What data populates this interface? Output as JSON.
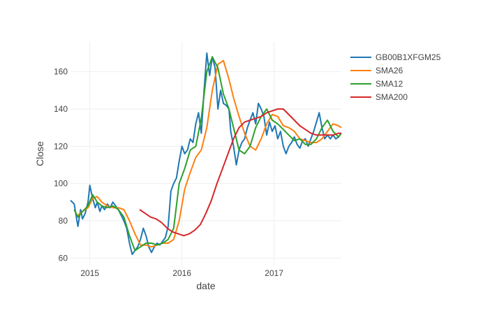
{
  "chart_data": {
    "type": "line",
    "xlabel": "date",
    "ylabel": "Close",
    "xlim": [
      2014.79,
      2017.73
    ],
    "ylim": [
      56,
      176
    ],
    "x_ticks": [
      2015,
      2016,
      2017
    ],
    "x_tick_labels": [
      "2015",
      "2016",
      "2017"
    ],
    "y_ticks": [
      60,
      80,
      100,
      120,
      140,
      160
    ],
    "grid": true,
    "legend_position": "top-right",
    "series": [
      {
        "name": "GB00B1XFGM25",
        "color": "#1f77b4",
        "x": [
          2014.79,
          2014.83,
          2014.87,
          2014.9,
          2014.92,
          2014.95,
          2014.98,
          2015.0,
          2015.03,
          2015.06,
          2015.08,
          2015.11,
          2015.13,
          2015.16,
          2015.19,
          2015.22,
          2015.25,
          2015.28,
          2015.31,
          2015.34,
          2015.37,
          2015.4,
          2015.43,
          2015.46,
          2015.49,
          2015.52,
          2015.55,
          2015.58,
          2015.61,
          2015.64,
          2015.67,
          2015.7,
          2015.73,
          2015.76,
          2015.79,
          2015.82,
          2015.85,
          2015.88,
          2015.91,
          2015.94,
          2015.97,
          2016.0,
          2016.03,
          2016.06,
          2016.09,
          2016.12,
          2016.15,
          2016.18,
          2016.21,
          2016.24,
          2016.27,
          2016.3,
          2016.33,
          2016.36,
          2016.39,
          2016.42,
          2016.45,
          2016.48,
          2016.51,
          2016.53,
          2016.56,
          2016.59,
          2016.62,
          2016.65,
          2016.68,
          2016.71,
          2016.74,
          2016.77,
          2016.8,
          2016.83,
          2016.86,
          2016.89,
          2016.92,
          2016.95,
          2016.98,
          2017.01,
          2017.04,
          2017.07,
          2017.1,
          2017.13,
          2017.16,
          2017.19,
          2017.22,
          2017.25,
          2017.28,
          2017.31,
          2017.34,
          2017.37,
          2017.4,
          2017.43,
          2017.46,
          2017.49,
          2017.52,
          2017.55,
          2017.58,
          2017.61,
          2017.64,
          2017.67,
          2017.7,
          2017.73
        ],
        "values": [
          91,
          89,
          77,
          86,
          81,
          84,
          90,
          99,
          92,
          87,
          90,
          85,
          88,
          86,
          89,
          87,
          90,
          88,
          86,
          83,
          80,
          76,
          68,
          62,
          64,
          66,
          70,
          76,
          72,
          66,
          63,
          66,
          68,
          67,
          69,
          71,
          77,
          96,
          100,
          103,
          112,
          120,
          116,
          118,
          124,
          122,
          132,
          138,
          127,
          150,
          170,
          158,
          168,
          162,
          140,
          150,
          143,
          142,
          140,
          128,
          120,
          110,
          118,
          122,
          124,
          130,
          134,
          138,
          132,
          143,
          140,
          136,
          126,
          133,
          128,
          131,
          124,
          128,
          120,
          116,
          120,
          122,
          125,
          121,
          119,
          123,
          124,
          120,
          124,
          128,
          133,
          138,
          130,
          124,
          126,
          124,
          126,
          124,
          125,
          127
        ]
      },
      {
        "name": "SMA26",
        "color": "#ff7f0e",
        "x": [
          2014.87,
          2014.92,
          2014.98,
          2015.03,
          2015.08,
          2015.13,
          2015.19,
          2015.25,
          2015.31,
          2015.37,
          2015.43,
          2015.49,
          2015.55,
          2015.61,
          2015.67,
          2015.73,
          2015.79,
          2015.85,
          2015.91,
          2015.97,
          2016.03,
          2016.09,
          2016.15,
          2016.21,
          2016.27,
          2016.33,
          2016.39,
          2016.45,
          2016.51,
          2016.56,
          2016.62,
          2016.68,
          2016.74,
          2016.8,
          2016.86,
          2016.92,
          2016.98,
          2017.04,
          2017.1,
          2017.16,
          2017.22,
          2017.28,
          2017.34,
          2017.4,
          2017.46,
          2017.52,
          2017.58,
          2017.64,
          2017.7,
          2017.73
        ],
        "values": [
          83,
          85,
          87,
          92,
          93,
          90,
          88,
          87,
          87,
          86,
          80,
          73,
          67,
          67,
          66,
          67,
          68,
          68,
          70,
          80,
          97,
          106,
          114,
          118,
          130,
          150,
          164,
          166,
          156,
          146,
          136,
          127,
          120,
          118,
          124,
          132,
          137,
          136,
          131,
          130,
          128,
          124,
          123,
          122,
          122,
          124,
          128,
          132,
          131,
          130
        ]
      },
      {
        "name": "SMA12",
        "color": "#2ca02c",
        "x": [
          2014.83,
          2014.87,
          2014.92,
          2014.98,
          2015.03,
          2015.08,
          2015.13,
          2015.19,
          2015.25,
          2015.31,
          2015.37,
          2015.43,
          2015.49,
          2015.55,
          2015.61,
          2015.67,
          2015.73,
          2015.79,
          2015.85,
          2015.91,
          2015.97,
          2016.03,
          2016.09,
          2016.15,
          2016.21,
          2016.27,
          2016.33,
          2016.39,
          2016.45,
          2016.51,
          2016.56,
          2016.62,
          2016.68,
          2016.74,
          2016.8,
          2016.86,
          2016.92,
          2016.98,
          2017.04,
          2017.1,
          2017.16,
          2017.22,
          2017.28,
          2017.34,
          2017.4,
          2017.46,
          2017.52,
          2017.58,
          2017.64,
          2017.7,
          2017.73
        ],
        "values": [
          86,
          82,
          85,
          88,
          94,
          90,
          88,
          87,
          88,
          86,
          82,
          72,
          64,
          66,
          68,
          68,
          67,
          68,
          70,
          76,
          100,
          108,
          118,
          120,
          135,
          160,
          168,
          162,
          148,
          140,
          130,
          118,
          116,
          120,
          130,
          136,
          140,
          134,
          132,
          129,
          126,
          123,
          124,
          121,
          121,
          124,
          130,
          134,
          128,
          125,
          127
        ]
      },
      {
        "name": "SMA200",
        "color": "#d62728",
        "x": [
          2015.54,
          2015.6,
          2015.66,
          2015.72,
          2015.78,
          2015.84,
          2015.9,
          2015.96,
          2016.02,
          2016.08,
          2016.14,
          2016.2,
          2016.26,
          2016.32,
          2016.38,
          2016.44,
          2016.5,
          2016.56,
          2016.62,
          2016.68,
          2016.74,
          2016.8,
          2016.86,
          2016.92,
          2016.98,
          2017.04,
          2017.1,
          2017.16,
          2017.22,
          2017.28,
          2017.34,
          2017.4,
          2017.46,
          2017.52,
          2017.58,
          2017.64,
          2017.7,
          2017.73
        ],
        "values": [
          86,
          84,
          82,
          81,
          79,
          76,
          74,
          73,
          72,
          73,
          75,
          78,
          84,
          91,
          100,
          108,
          116,
          124,
          130,
          133,
          134,
          135,
          136,
          138,
          139,
          140,
          140,
          137,
          134,
          131,
          129,
          127,
          126,
          126,
          126,
          126,
          127,
          127
        ]
      }
    ]
  }
}
